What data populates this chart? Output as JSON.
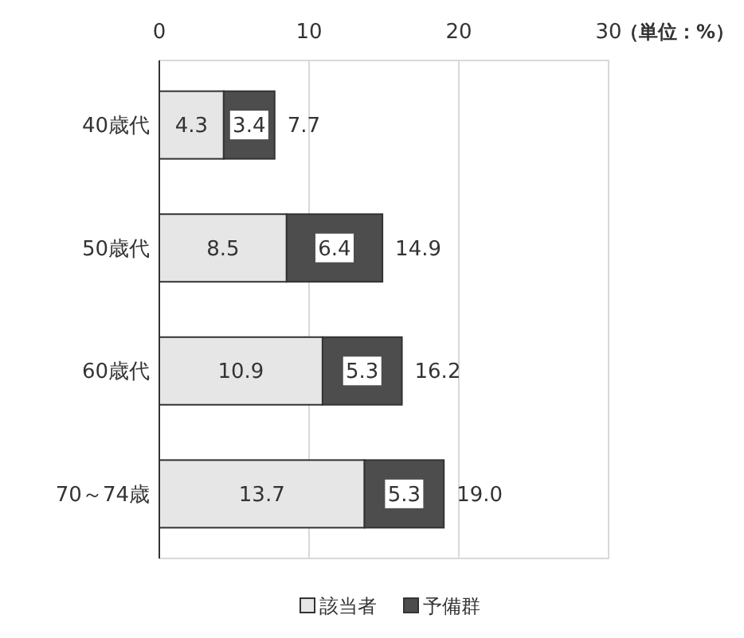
{
  "chart_data": {
    "type": "bar",
    "orientation": "horizontal",
    "stacked": true,
    "categories": [
      "40歳代",
      "50歳代",
      "60歳代",
      "70～74歳"
    ],
    "series": [
      {
        "name": "該当者",
        "color": "#e6e6e6",
        "values": [
          4.3,
          8.5,
          10.9,
          13.7
        ]
      },
      {
        "name": "予備群",
        "color": "#4d4d4d",
        "values": [
          3.4,
          6.4,
          5.3,
          5.3
        ]
      }
    ],
    "xlim": [
      0,
      30
    ],
    "xticks": [
      0,
      10,
      20,
      30
    ],
    "grid": "x",
    "data_labels": true,
    "totals": [
      "7.7",
      "14.9",
      "16.2",
      "19.0"
    ],
    "annotations": [
      "（単位：%）"
    ],
    "legend": "bottom"
  }
}
